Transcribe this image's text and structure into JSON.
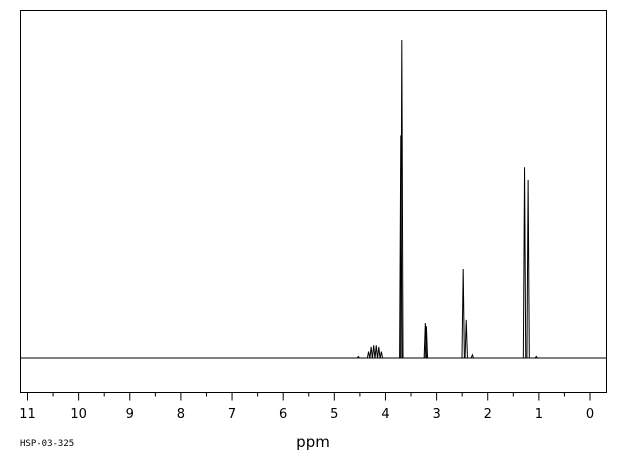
{
  "chart_data": {
    "type": "line",
    "title": "",
    "xlabel": "ppm",
    "ylabel": "",
    "footnote": "HSP-03-325",
    "xlim": [
      11.2,
      -0.3
    ],
    "ylim": [
      -0.1,
      1.0
    ],
    "x_axis_reversed": true,
    "grid": false,
    "tick_labels": [
      "11",
      "10",
      "9",
      "8",
      "7",
      "6",
      "5",
      "4",
      "3",
      "2",
      "1",
      "0"
    ],
    "tick_values": [
      11,
      10,
      9,
      8,
      7,
      6,
      5,
      4,
      3,
      2,
      1,
      0
    ],
    "baseline": 0,
    "peaks": [
      {
        "ppm": 4.53,
        "intensity": 0.005
      },
      {
        "ppm": 4.33,
        "intensity": 0.02
      },
      {
        "ppm": 4.28,
        "intensity": 0.035
      },
      {
        "ppm": 4.23,
        "intensity": 0.04
      },
      {
        "ppm": 4.18,
        "intensity": 0.04
      },
      {
        "ppm": 4.13,
        "intensity": 0.035
      },
      {
        "ppm": 4.08,
        "intensity": 0.02
      },
      {
        "ppm": 3.7,
        "intensity": 0.7
      },
      {
        "ppm": 3.68,
        "intensity": 1.0
      },
      {
        "ppm": 3.22,
        "intensity": 0.11
      },
      {
        "ppm": 3.2,
        "intensity": 0.1
      },
      {
        "ppm": 2.48,
        "intensity": 0.28
      },
      {
        "ppm": 2.42,
        "intensity": 0.12
      },
      {
        "ppm": 2.3,
        "intensity": 0.01
      },
      {
        "ppm": 1.28,
        "intensity": 0.6
      },
      {
        "ppm": 1.21,
        "intensity": 0.56
      },
      {
        "ppm": 1.05,
        "intensity": 0.005
      }
    ]
  }
}
